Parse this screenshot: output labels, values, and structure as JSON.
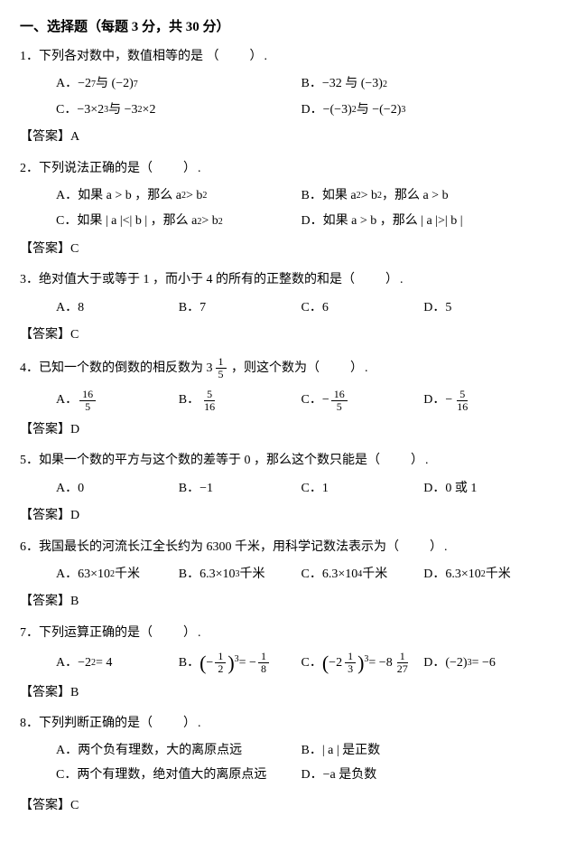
{
  "section_title": "一、选择题（每题 3 分，共 30 分）",
  "blank": "（　　）.",
  "answer_label": "【答案】",
  "q1": {
    "stem": "1．下列各对数中，数值相等的是",
    "A_pre": "A．",
    "A_a1": "−2",
    "A_a1e": "7",
    "A_mid": " 与 (−2)",
    "A_a2e": "7",
    "B_pre": "B．",
    "B_a1": "−32 与 (−3)",
    "B_a1e": "2",
    "C_pre": "C．",
    "C_a1": "−3×2",
    "C_a1e": "3",
    "C_mid": " 与 −3",
    "C_a2e": "2",
    "C_end": " ×2",
    "D_pre": "D．",
    "D_a1": "−(−3)",
    "D_a1e": "2",
    "D_mid": " 与 −(−2)",
    "D_a2e": "3",
    "ans": "A"
  },
  "q2": {
    "stem": "2．下列说法正确的是",
    "A": "A．如果 a > b ，那么 a",
    "Ae": "2",
    "A2": " > b",
    "A2e": "2",
    "B": "B．如果 a",
    "Be": "2",
    "B2": " > b",
    "B2e": "2",
    "B3": " ，那么 a > b",
    "C": "C．如果 | a |<| b | ，那么 a",
    "Ce": "2",
    "C2": " > b",
    "C2e": "2",
    "D": "D．如果 a > b ，那么 | a |>| b |",
    "ans": "C"
  },
  "q3": {
    "stem": "3．绝对值大于或等于 1 ，而小于 4 的所有的正整数的和是",
    "A": "A．8",
    "B": "B．7",
    "C": "C．6",
    "D": "D．5",
    "ans": "C"
  },
  "q4": {
    "stem_pre": "4．已知一个数的倒数的相反数为 ",
    "stem_whole": "3",
    "stem_num": "1",
    "stem_den": "5",
    "stem_post": " ，则这个数为",
    "A": "A．",
    "An": "16",
    "Ad": "5",
    "B": "B．",
    "Bn": "5",
    "Bd": "16",
    "C": "C．−",
    "Cn": "16",
    "Cd": "5",
    "D": "D．−",
    "Dn": "5",
    "Dd": "16",
    "ans": "D"
  },
  "q5": {
    "stem": "5．如果一个数的平方与这个数的差等于 0 ，那么这个数只能是",
    "A": "A．0",
    "B": "B．−1",
    "C": "C．1",
    "D": "D．0 或 1",
    "ans": "D"
  },
  "q6": {
    "stem": "6．我国最长的河流长江全长约为 6300 千米，用科学记数法表示为",
    "A": "A．63×10",
    "Ae": "2",
    "Au": " 千米",
    "B": "B．6.3×10",
    "Be": "3",
    "Bu": "千米",
    "C": "C．6.3×10",
    "Ce": "4",
    "Cu": " 千米",
    "D": "D．6.3×10",
    "De": "2",
    "Du": " 千米",
    "ans": "B"
  },
  "q7": {
    "stem": "7．下列运算正确的是",
    "A": "A．−2",
    "Ae": "2",
    "A2": " = 4",
    "B": "B．",
    "B_num": "1",
    "B_den": "2",
    "B_exp": "3",
    "B_eq": " = −",
    "B_rnum": "1",
    "B_rden": "8",
    "C": "C．",
    "C_whole": "2",
    "C_num": "1",
    "C_den": "3",
    "C_exp": "3",
    "C_eq": " = −8",
    "C_rnum": "1",
    "C_rden": "27",
    "D": "D．(−2)",
    "De": "3",
    "D2": " = −6",
    "ans": "B"
  },
  "q8": {
    "stem": "8．下列判断正确的是",
    "A": "A．两个负有理数，大的离原点远",
    "B": "B．| a | 是正数",
    "C": "C．两个有理数，绝对值大的离原点远",
    "D": "D．−a 是负数",
    "ans": "C"
  }
}
